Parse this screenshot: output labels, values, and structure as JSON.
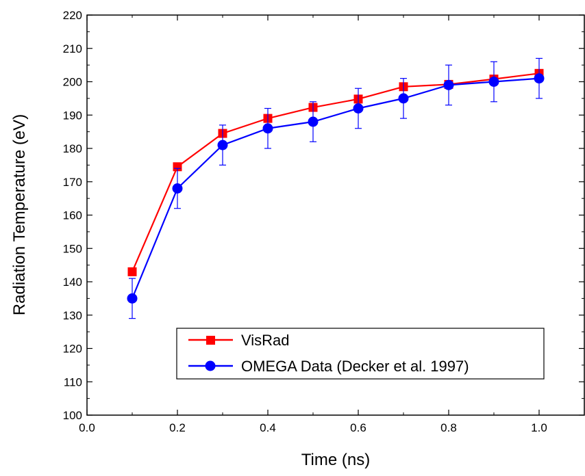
{
  "chart_data": {
    "type": "line",
    "xlabel": "Time (ns)",
    "ylabel": "Radiation Temperature (eV)",
    "xlim": [
      0.0,
      1.1
    ],
    "ylim": [
      100,
      220
    ],
    "x_ticks": [
      0.0,
      0.2,
      0.4,
      0.6,
      0.8,
      1.0
    ],
    "x_tick_labels": [
      "0.0",
      "0.2",
      "0.4",
      "0.6",
      "0.8",
      "1.0"
    ],
    "y_ticks": [
      100,
      110,
      120,
      130,
      140,
      150,
      160,
      170,
      180,
      190,
      200,
      210,
      220
    ],
    "y_tick_labels": [
      "100",
      "110",
      "120",
      "130",
      "140",
      "150",
      "160",
      "170",
      "180",
      "190",
      "200",
      "210",
      "220"
    ],
    "grid": false,
    "legend_position": "bottom-right",
    "series": [
      {
        "name": "VisRad",
        "color": "#ff0000",
        "marker": "square",
        "x": [
          0.1,
          0.2,
          0.3,
          0.4,
          0.5,
          0.6,
          0.7,
          0.8,
          0.9,
          1.0
        ],
        "y": [
          143,
          174.5,
          184.5,
          189,
          192.3,
          194.8,
          198.5,
          199.2,
          200.8,
          202.5
        ]
      },
      {
        "name": "OMEGA Data (Decker et al. 1997)",
        "color": "#0000ff",
        "marker": "circle",
        "x": [
          0.1,
          0.2,
          0.3,
          0.4,
          0.5,
          0.6,
          0.7,
          0.8,
          0.9,
          1.0
        ],
        "y": [
          135,
          168,
          181,
          186,
          188,
          192,
          195,
          199,
          200,
          201
        ],
        "error": [
          6,
          6,
          6,
          6,
          6,
          6,
          6,
          6,
          6,
          6
        ]
      }
    ]
  }
}
